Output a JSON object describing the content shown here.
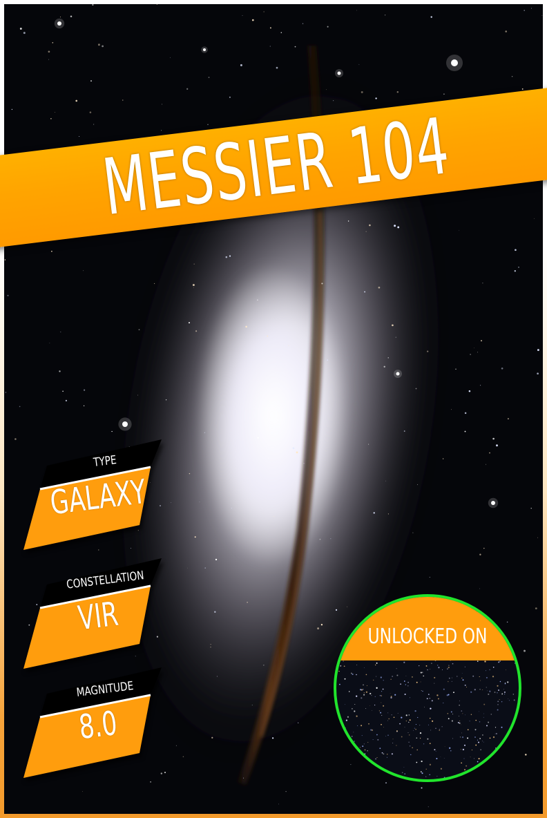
{
  "title": "MESSIER 104",
  "stats": [
    {
      "label": "TYPE",
      "value": "GALAXY"
    },
    {
      "label": "CONSTELLATION",
      "value": "VIR"
    },
    {
      "label": "MAGNITUDE",
      "value": "8.0"
    }
  ],
  "unlock": {
    "label": "UNLOCKED ON",
    "ring_color": "#21e42c"
  },
  "colors": {
    "accent": "#ff9d0d",
    "tag_header": "#000000",
    "space": "#05060a"
  }
}
